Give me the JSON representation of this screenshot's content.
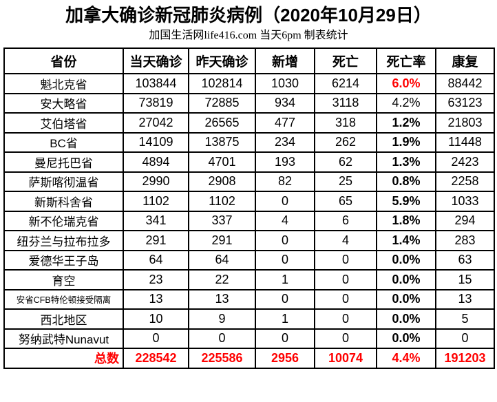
{
  "title": "加拿大确诊新冠肺炎病例（2020年10月29日）",
  "subtitle": "加国生活网life416.com 当天6pm 制表统计",
  "colors": {
    "text": "#000000",
    "highlight_red": "#FF0000",
    "border": "#000000",
    "background": "#FFFFFF"
  },
  "chart_data": {
    "type": "table",
    "title": "加拿大确诊新冠肺炎病例（2020年10月29日）",
    "subtitle": "加国生活网life416.com 当天6pm 制表统计",
    "columns": [
      "省份",
      "当天确诊",
      "昨天确诊",
      "新增",
      "死亡",
      "死亡率",
      "康复"
    ],
    "rows": [
      {
        "province": "魁北克省",
        "today": 103844,
        "yesterday": 102814,
        "new_cases": 1030,
        "deaths": 6214,
        "death_rate": "6.0%",
        "recovered": 88442,
        "rate_style": "red"
      },
      {
        "province": "安大略省",
        "today": 73819,
        "yesterday": 72885,
        "new_cases": 934,
        "deaths": 3118,
        "death_rate": "4.2%",
        "recovered": 63123,
        "rate_style": "normal"
      },
      {
        "province": "艾伯塔省",
        "today": 27042,
        "yesterday": 26565,
        "new_cases": 477,
        "deaths": 318,
        "death_rate": "1.2%",
        "recovered": 21803,
        "rate_style": "bold"
      },
      {
        "province": "BC省",
        "today": 14109,
        "yesterday": 13875,
        "new_cases": 234,
        "deaths": 262,
        "death_rate": "1.9%",
        "recovered": 11448,
        "rate_style": "bold"
      },
      {
        "province": "曼尼托巴省",
        "today": 4894,
        "yesterday": 4701,
        "new_cases": 193,
        "deaths": 62,
        "death_rate": "1.3%",
        "recovered": 2423,
        "rate_style": "bold"
      },
      {
        "province": "萨斯喀彻温省",
        "today": 2990,
        "yesterday": 2908,
        "new_cases": 82,
        "deaths": 25,
        "death_rate": "0.8%",
        "recovered": 2258,
        "rate_style": "bold"
      },
      {
        "province": "新斯科舍省",
        "today": 1102,
        "yesterday": 1102,
        "new_cases": 0,
        "deaths": 65,
        "death_rate": "5.9%",
        "recovered": 1033,
        "rate_style": "bold"
      },
      {
        "province": "新不伦瑞克省",
        "today": 341,
        "yesterday": 337,
        "new_cases": 4,
        "deaths": 6,
        "death_rate": "1.8%",
        "recovered": 294,
        "rate_style": "bold"
      },
      {
        "province": "纽芬兰与拉布拉多",
        "today": 291,
        "yesterday": 291,
        "new_cases": 0,
        "deaths": 4,
        "death_rate": "1.4%",
        "recovered": 283,
        "rate_style": "bold"
      },
      {
        "province": "爱德华王子岛",
        "today": 64,
        "yesterday": 64,
        "new_cases": 0,
        "deaths": 0,
        "death_rate": "0.0%",
        "recovered": 63,
        "rate_style": "bold"
      },
      {
        "province": "育空",
        "today": 23,
        "yesterday": 22,
        "new_cases": 1,
        "deaths": 0,
        "death_rate": "0.0%",
        "recovered": 15,
        "rate_style": "bold"
      },
      {
        "province": "安省CFB特伦顿接受隔离",
        "today": 13,
        "yesterday": 13,
        "new_cases": 0,
        "deaths": 0,
        "death_rate": "0.0%",
        "recovered": 13,
        "rate_style": "bold",
        "label_small": true
      },
      {
        "province": "西北地区",
        "today": 10,
        "yesterday": 9,
        "new_cases": 1,
        "deaths": 0,
        "death_rate": "0.0%",
        "recovered": 5,
        "rate_style": "bold"
      },
      {
        "province": "努纳武特Nunavut",
        "today": 0,
        "yesterday": 0,
        "new_cases": 0,
        "deaths": 0,
        "death_rate": "0.0%",
        "recovered": 0,
        "rate_style": "bold"
      }
    ],
    "total": {
      "label": "总数",
      "today": 228542,
      "yesterday": 225586,
      "new_cases": 2956,
      "deaths": 10074,
      "death_rate": "4.4%",
      "recovered": 191203
    },
    "layout": {
      "grid": true,
      "header_bold": true,
      "total_row_color": "#FF0000",
      "quebec_rate_color": "#FF0000"
    }
  }
}
